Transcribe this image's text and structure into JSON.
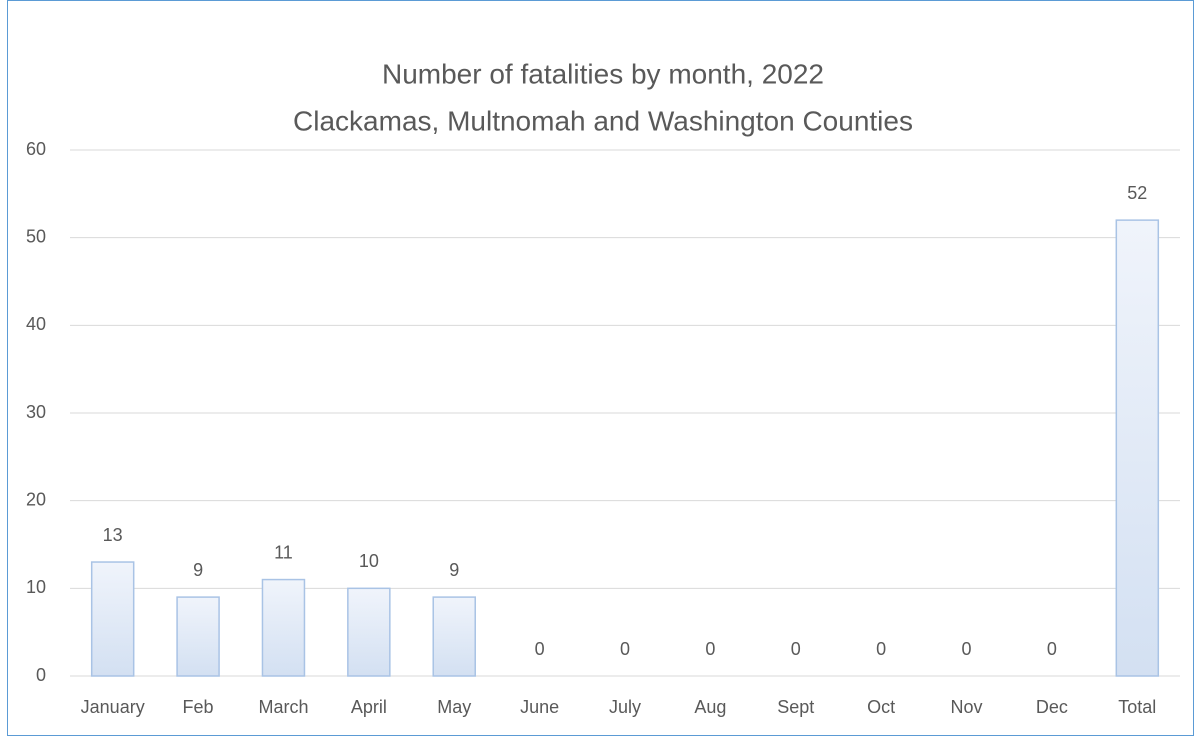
{
  "chart_data": {
    "type": "bar",
    "title": "Number of fatalities by month, 2022",
    "subtitle": "Clackamas, Multnomah and Washington Counties",
    "categories": [
      "January",
      "Feb",
      "March",
      "April",
      "May",
      "June",
      "July",
      "Aug",
      "Sept",
      "Oct",
      "Nov",
      "Dec",
      "Total"
    ],
    "values": [
      13,
      9,
      11,
      10,
      9,
      0,
      0,
      0,
      0,
      0,
      0,
      0,
      52
    ],
    "color": "#dae5f4",
    "ylim": [
      0,
      60
    ],
    "yticks": [
      0,
      10,
      20,
      30,
      40,
      50,
      60
    ],
    "grid": true
  }
}
